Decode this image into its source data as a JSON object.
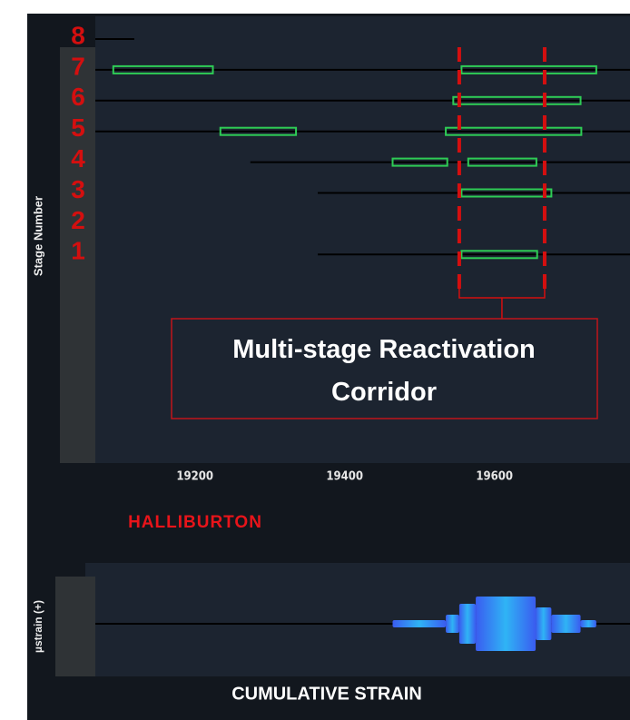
{
  "chart_data": {
    "type": "range",
    "y_label": "Stage Number",
    "categories": [
      "8",
      "7",
      "6",
      "5",
      "4",
      "3",
      "2",
      "1"
    ],
    "xlim": [
      19067,
      19781
    ],
    "xticks": [
      19200,
      19400,
      19600
    ],
    "lines": [
      [
        19067,
        19119
      ],
      [
        19067,
        19781
      ],
      [
        19067,
        19781
      ],
      [
        19067,
        19781
      ],
      [
        19274,
        19781
      ],
      [
        19364,
        19781
      ],
      null,
      [
        19364,
        19781
      ]
    ],
    "series": [
      {
        "color": "#2ecc55",
        "segments": [
          null,
          [
            19091,
            19224
          ],
          null,
          [
            19234,
            19335
          ],
          [
            19464,
            19537
          ],
          null,
          null,
          null
        ]
      },
      {
        "color": "#2ecc55",
        "segments": [
          null,
          [
            19556,
            19736
          ],
          [
            19545,
            19715
          ],
          [
            19535,
            19716
          ],
          [
            19565,
            19656
          ],
          [
            19556,
            19676
          ],
          null,
          [
            19556,
            19657
          ]
        ]
      }
    ],
    "corridor": [
      19553,
      19667
    ],
    "corridor_color": "#d40f0f",
    "annotation": "Multi-stage Reactivation Corridor",
    "brand": "HALLIBURTON",
    "strain": {
      "y_label": "µstrain (+)",
      "title": "CUMULATIVE STRAIN",
      "bins": [
        19464,
        19535,
        19553,
        19575,
        19655,
        19676,
        19715,
        19736
      ],
      "values": [
        4,
        10,
        22,
        30,
        18,
        10,
        4
      ]
    }
  }
}
